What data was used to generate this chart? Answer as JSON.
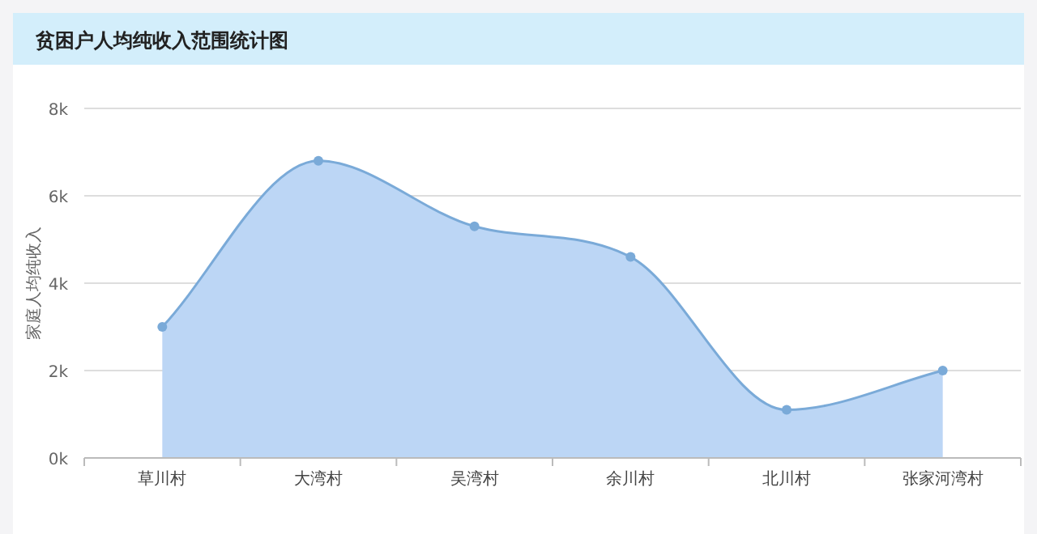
{
  "chart_data": {
    "type": "area",
    "title": "贫困户人均纯收入范围统计图",
    "ylabel": "家庭人均纯收入",
    "categories": [
      "草川村",
      "大湾村",
      "吴湾村",
      "余川村",
      "北川村",
      "张家河湾村"
    ],
    "series": [
      {
        "color": "#7aaad8",
        "values": [
          3000,
          6800,
          5300,
          4600,
          1100,
          2000
        ]
      }
    ],
    "ylim": [
      0,
      8000
    ],
    "yticks": [
      {
        "value": 0,
        "label": "0k"
      },
      {
        "value": 2000,
        "label": "2k"
      },
      {
        "value": 4000,
        "label": "4k"
      },
      {
        "value": 6000,
        "label": "6k"
      },
      {
        "value": 8000,
        "label": "8k"
      }
    ],
    "grid": "y",
    "marker": "circle"
  }
}
